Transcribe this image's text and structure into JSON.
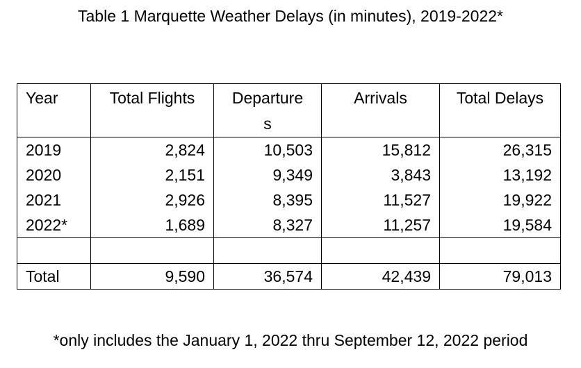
{
  "title": "Table 1 Marquette Weather Delays (in minutes), 2019-2022*",
  "table": {
    "headers": {
      "year": "Year",
      "total_flights": "Total Flights",
      "departures_line1": "Departure",
      "departures_line2": "s",
      "arrivals": "Arrivals",
      "total_delays": "Total Delays"
    },
    "rows": [
      {
        "year": "2019",
        "total_flights": "2,824",
        "departures": "10,503",
        "arrivals": "15,812",
        "total_delays": "26,315"
      },
      {
        "year": "2020",
        "total_flights": "2,151",
        "departures": "9,349",
        "arrivals": "3,843",
        "total_delays": "13,192"
      },
      {
        "year": "2021",
        "total_flights": "2,926",
        "departures": "8,395",
        "arrivals": "11,527",
        "total_delays": "19,922"
      },
      {
        "year": "2022*",
        "total_flights": "1,689",
        "departures": "8,327",
        "arrivals": "11,257",
        "total_delays": "19,584"
      }
    ],
    "total": {
      "label": "Total",
      "total_flights": "9,590",
      "departures": "36,574",
      "arrivals": "42,439",
      "total_delays": "79,013"
    }
  },
  "footnote": "*only includes the January 1, 2022 thru September 12, 2022 period"
}
